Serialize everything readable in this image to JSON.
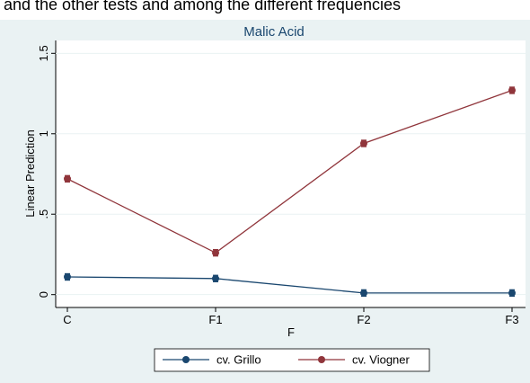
{
  "page_text": "and the other tests and among the different frequencies",
  "chart_data": {
    "type": "line",
    "title": "Malic Acid",
    "x_label": "F",
    "y_label": "Linear Prediction",
    "categories": [
      "C",
      "F1",
      "F2",
      "F3"
    ],
    "series": [
      {
        "name": "cv. Grillo",
        "color": "#1a476f",
        "values": [
          0.11,
          0.1,
          0.01,
          0.01
        ],
        "errors": [
          0.02,
          0.02,
          0.02,
          0.02
        ]
      },
      {
        "name": "cv. Viogner",
        "color": "#90353b",
        "values": [
          0.72,
          0.26,
          0.94,
          1.27
        ],
        "errors": [
          0.02,
          0.02,
          0.02,
          0.02
        ]
      }
    ],
    "ylim": [
      -0.08,
      1.58
    ],
    "yticks": [
      0,
      {
        "value": 0.5,
        "label": ".5"
      },
      1,
      1.5
    ],
    "grid": true,
    "legend": "bottom"
  }
}
